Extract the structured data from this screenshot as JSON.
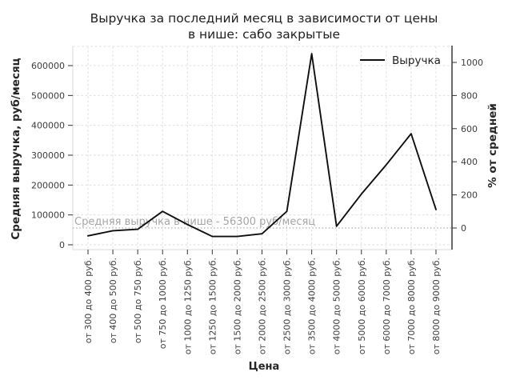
{
  "chart_data": {
    "type": "line",
    "title": "Выручка за последний месяц в зависимости от цены в нише: сабо закрытые",
    "title_lines": [
      "Выручка за последний месяц в зависимости от цены",
      "в нише: сабо закрытые"
    ],
    "xlabel": "Цена",
    "ylabel": "Средняя выручка, руб/месяц",
    "ylabel_secondary": "% от средней",
    "categories": [
      "от 300 до 400 руб.",
      "от 400 до 500 руб.",
      "от 500 до 750 руб.",
      "от 750 до 1000 руб.",
      "от 1000 до 1250 руб.",
      "от 1250 до 1500 руб.",
      "от 1500 до 2000 руб.",
      "от 2000 до 2500 руб.",
      "от 2500 до 3000 руб.",
      "от 3500 до 4000 руб.",
      "от 4000 до 5000 руб.",
      "от 5000 до 6000 руб.",
      "от 6000 до 7000 руб.",
      "от 7000 до 8000 руб.",
      "от 8000 до 9000 руб."
    ],
    "series": [
      {
        "name": "Выручка",
        "values": [
          30000,
          47000,
          52000,
          112000,
          68000,
          28000,
          28000,
          37000,
          112000,
          640000,
          62000,
          170000,
          268000,
          372000,
          118000
        ]
      }
    ],
    "yaxis_left": {
      "label": "Средняя выручка, руб/месяц",
      "ticks": [
        0,
        100000,
        200000,
        300000,
        400000,
        500000,
        600000
      ],
      "lim": [
        -16000,
        665000
      ]
    },
    "yaxis_right": {
      "label": "% от средней",
      "ticks": [
        0,
        200,
        400,
        600,
        800,
        1000
      ],
      "unit": "%"
    },
    "annotation": {
      "text": "Средняя выручка в нише - 56300 руб/месяц",
      "value": 56300
    },
    "grid": true,
    "legend_position": "upper right",
    "line_color": "#0f0f0f",
    "grid_color": "#dcdcdc",
    "average_line_color": "#b5b5b5",
    "x_tick_rotation": 90
  }
}
